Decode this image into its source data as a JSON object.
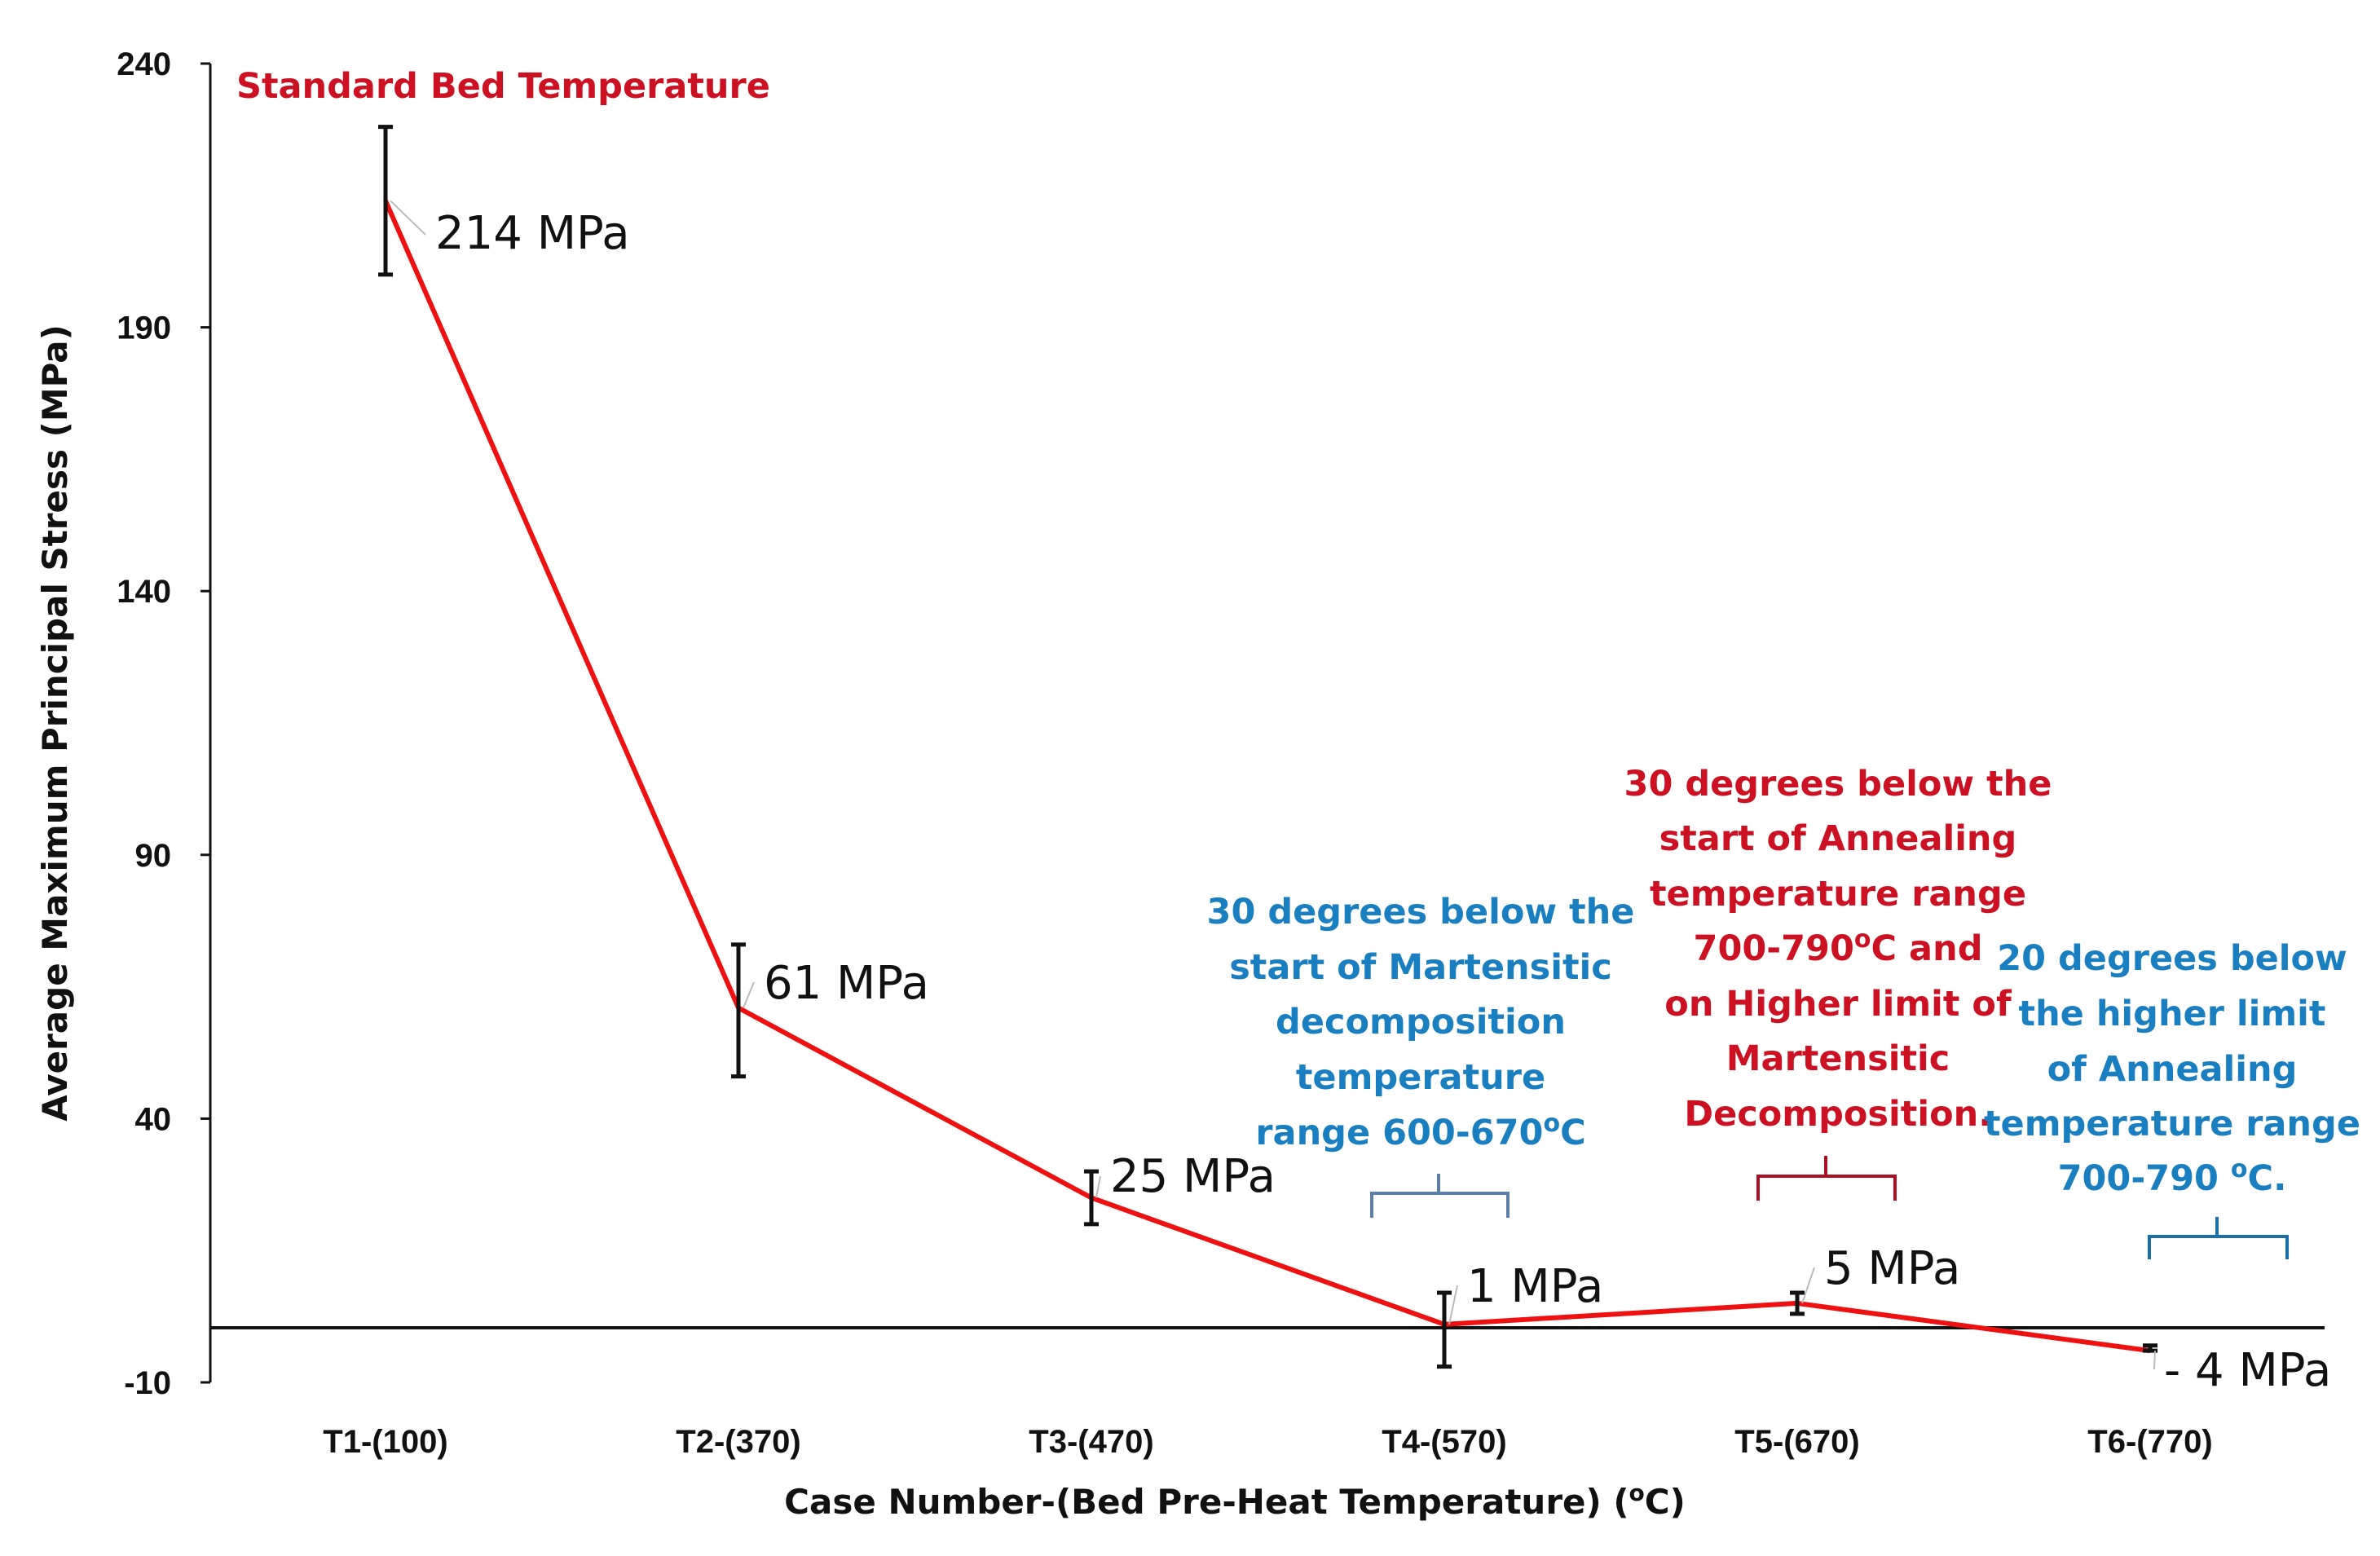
{
  "chart_data": {
    "type": "line",
    "title": "",
    "xlabel": "Case Number-(Bed Pre-Heat Temperature) (",
    "xlabel_unit": "C)",
    "xlabel_degree": "o",
    "ylabel": "Average Maximum Principal Stress (MPa)",
    "ylim": [
      -10,
      240
    ],
    "yticks": [
      "240",
      "190",
      "140",
      "90",
      "40",
      "-10"
    ],
    "categories": [
      "T1-(100)",
      "T2-(370)",
      "T3-(470)",
      "T4-(570)",
      "T5-(670)",
      "T6-(770)"
    ],
    "series": [
      {
        "name": "Average Maximum Principal Stress",
        "color": "#ee1111",
        "values": [
          214,
          61,
          25,
          1,
          5,
          -4
        ],
        "error_low": [
          200,
          48,
          20,
          -7,
          3,
          -4
        ],
        "error_high": [
          228,
          73,
          30,
          7,
          7,
          -3
        ]
      }
    ],
    "data_labels": [
      "214 MPa",
      "61 MPa",
      "25 MPa",
      "1 MPa",
      "5 MPa",
      "- 4 MPa"
    ],
    "annotations": [
      {
        "text": "Standard Bed Temperature",
        "color": "#cc1122"
      },
      {
        "lines": [
          "30 degrees below the",
          "start of Martensitic",
          "decomposition",
          "temperature",
          "range 600-670",
          "C"
        ],
        "degree": "o",
        "color": "#1a7fc0"
      },
      {
        "lines": [
          "30 degrees below the",
          "start of Annealing",
          "temperature range",
          "700-790",
          "C and",
          "on Higher limit of",
          "Martensitic",
          "Decomposition."
        ],
        "degree": "o",
        "color": "#cc1122"
      },
      {
        "lines": [
          "20 degrees below",
          "the higher limit",
          "of Annealing",
          "temperature range",
          "700-790 ",
          "C."
        ],
        "degree": "o",
        "color": "#1a7fc0"
      }
    ],
    "grid": false,
    "legend": "none"
  }
}
